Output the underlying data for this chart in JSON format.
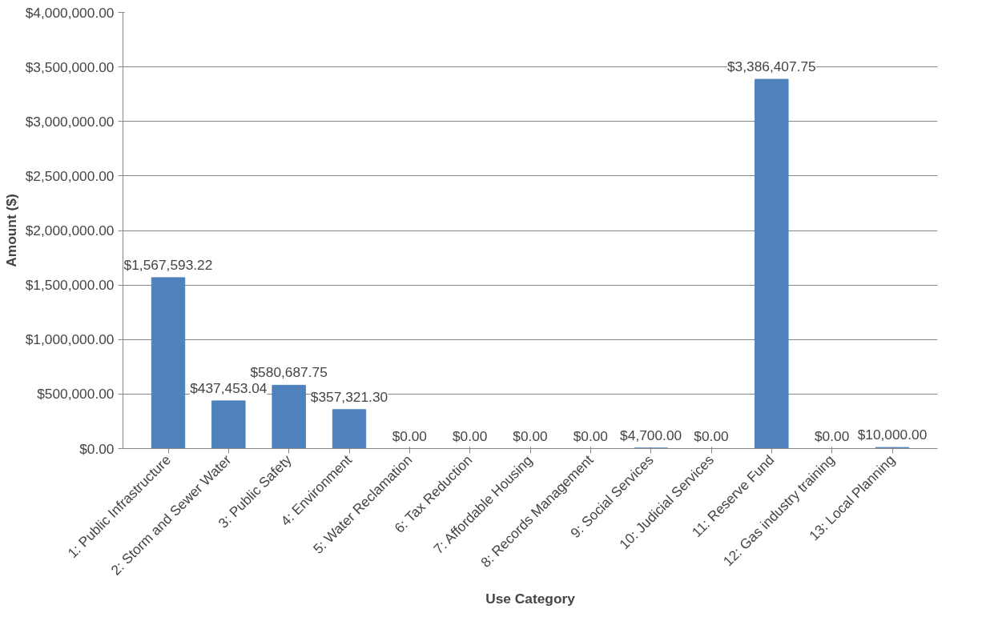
{
  "chart_data": {
    "type": "bar",
    "xlabel": "Use Category",
    "ylabel": "Amount ($)",
    "categories": [
      "1: Public Infrastructure",
      "2: Storm and Sewer Water",
      "3: Public Safety",
      "4: Environment",
      "5: Water Reclamation",
      "6: Tax Reduction",
      "7: Affordable Housing",
      "8: Records Management",
      "9: Social Services",
      "10: Judicial Services",
      "11: Reserve Fund",
      "12: Gas industry training",
      "13: Local Planning"
    ],
    "values": [
      1567593.22,
      437453.04,
      580687.75,
      357321.3,
      0,
      0,
      0,
      0,
      4700,
      0,
      3386407.75,
      0,
      10000
    ],
    "value_labels": [
      "$1,567,593.22",
      "$437,453.04",
      "$580,687.75",
      "$357,321.30",
      "$0.00",
      "$0.00",
      "$0.00",
      "$0.00",
      "$4,700.00",
      "$0.00",
      "$3,386,407.75",
      "$0.00",
      "$10,000.00"
    ],
    "color": "#4f81bd",
    "ylim": [
      0,
      4000000
    ],
    "yticks": [
      {
        "value": 0,
        "label": "$0.00"
      },
      {
        "value": 500000,
        "label": "$500,000.00"
      },
      {
        "value": 1000000,
        "label": "$1,000,000.00"
      },
      {
        "value": 1500000,
        "label": "$1,500,000.00"
      },
      {
        "value": 2000000,
        "label": "$2,000,000.00"
      },
      {
        "value": 2500000,
        "label": "$2,500,000.00"
      },
      {
        "value": 3000000,
        "label": "$3,000,000.00"
      },
      {
        "value": 3500000,
        "label": "$3,500,000.00"
      },
      {
        "value": 4000000,
        "label": "$4,000,000.00"
      }
    ],
    "grid": "y"
  }
}
